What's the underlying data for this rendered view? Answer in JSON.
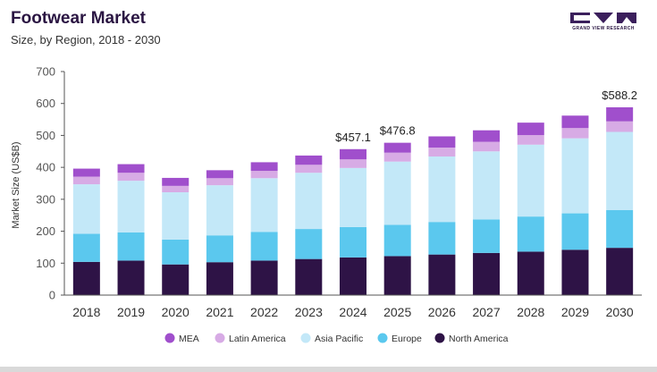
{
  "header": {
    "title": "Footwear Market",
    "subtitle": "Size, by Region, 2018 - 2030"
  },
  "logo": {
    "text": "GRAND VIEW RESEARCH",
    "color": "#3b1f5c"
  },
  "chart_data": {
    "type": "bar",
    "stacked": true,
    "title": "Footwear Market",
    "subtitle": "Size, by Region, 2018 - 2030",
    "xlabel": "",
    "ylabel": "Market Size (US$B)",
    "ylim": [
      0,
      700
    ],
    "yticks": [
      0,
      100,
      200,
      300,
      400,
      500,
      600,
      700
    ],
    "grid": false,
    "legend_position": "bottom",
    "categories": [
      "2018",
      "2019",
      "2020",
      "2021",
      "2022",
      "2023",
      "2024",
      "2025",
      "2026",
      "2027",
      "2028",
      "2029",
      "2030"
    ],
    "series": [
      {
        "name": "North America",
        "color": "#2e1346",
        "values": [
          104,
          108,
          96,
          103,
          108,
          113,
          118,
          122,
          127,
          132,
          136,
          142,
          148
        ]
      },
      {
        "name": "Europe",
        "color": "#5bc8ee",
        "values": [
          88,
          88,
          78,
          84,
          90,
          94,
          95,
          98,
          102,
          105,
          110,
          114,
          118
        ]
      },
      {
        "name": "Asia Pacific",
        "color": "#c3e8f8",
        "values": [
          155,
          162,
          148,
          157,
          168,
          176,
          185,
          198,
          205,
          213,
          225,
          235,
          245
        ]
      },
      {
        "name": "Latin America",
        "color": "#d7abe5",
        "values": [
          24,
          25,
          20,
          22,
          23,
          25,
          27,
          28,
          28,
          30,
          30,
          32,
          33
        ]
      },
      {
        "name": "MEA",
        "color": "#a04fcc",
        "values": [
          25,
          27,
          25,
          25,
          27,
          29,
          32,
          31,
          35,
          36,
          39,
          39,
          44
        ]
      }
    ],
    "annotations": [
      {
        "category": "2024",
        "text": "$457.1"
      },
      {
        "category": "2025",
        "text": "$476.8"
      },
      {
        "category": "2030",
        "text": "$588.2"
      }
    ],
    "legend_order": [
      "MEA",
      "Latin America",
      "Asia Pacific",
      "Europe",
      "North America"
    ]
  }
}
